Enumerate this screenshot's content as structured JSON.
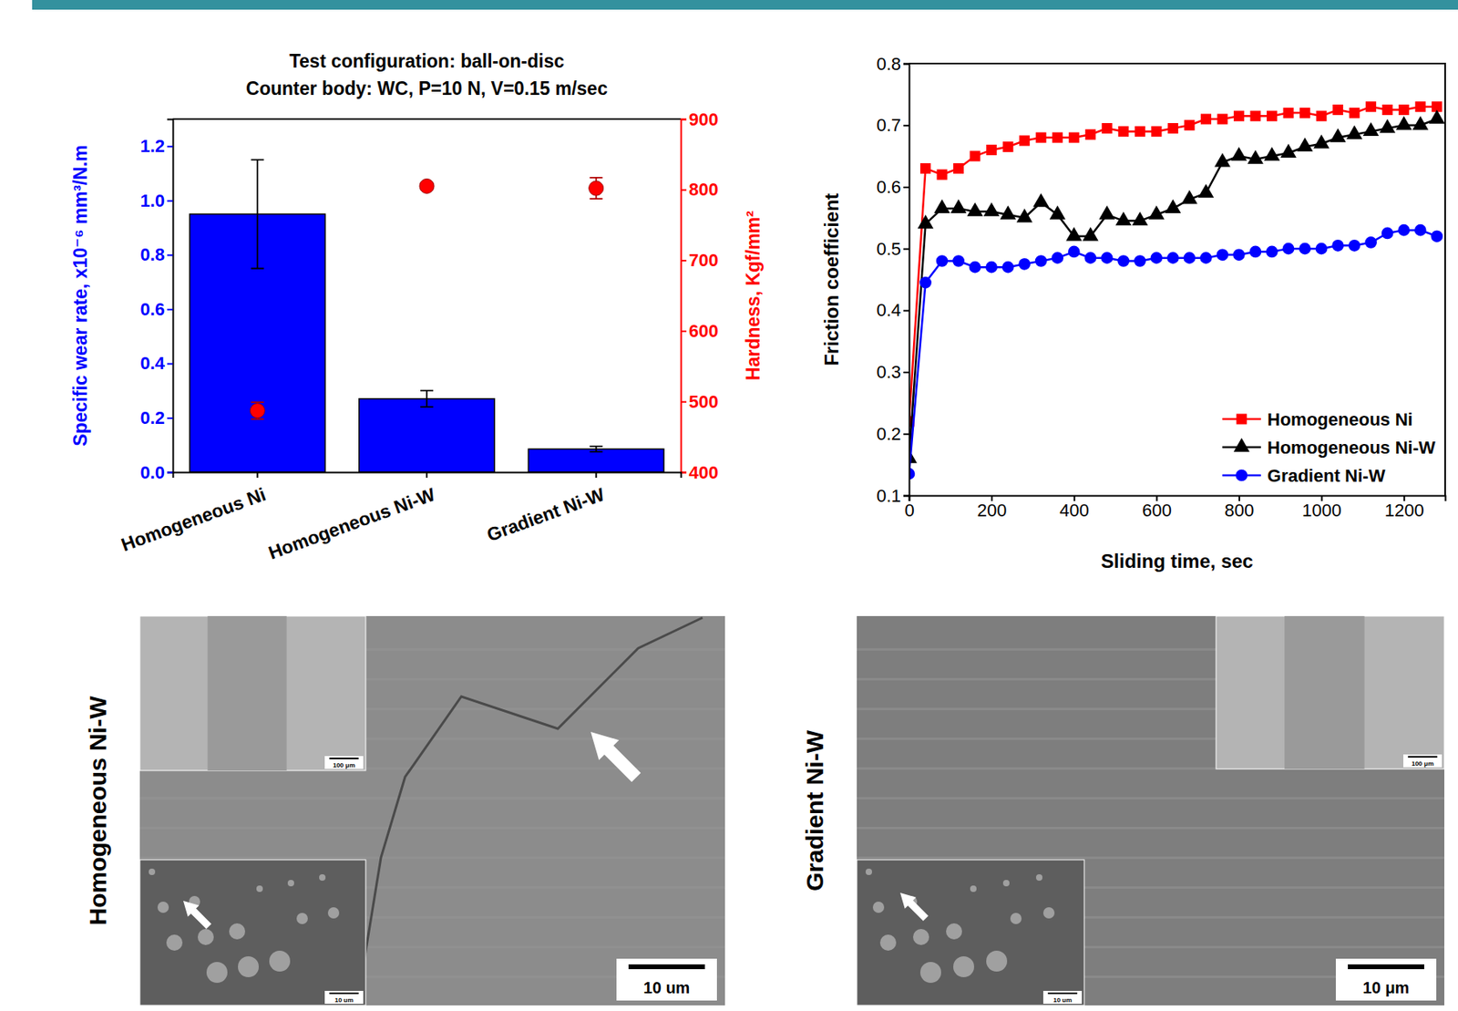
{
  "chart_data": [
    {
      "type": "bar",
      "title": "Test configuration: ball-on-disc",
      "subtitle": "Counter body: WC, P=10 N, V=0.15 m/sec",
      "categories": [
        "Homogeneous Ni",
        "Homogeneous Ni-W",
        "Gradient Ni-W"
      ],
      "series": [
        {
          "type": "bar",
          "color": "#0000ff",
          "values": [
            0.95,
            0.27,
            0.085
          ],
          "errors": [
            0.2,
            0.03,
            0.01
          ]
        },
        {
          "type": "scatter",
          "axis": "y2",
          "color": "#ff0000",
          "marker": "circle",
          "values": [
            487,
            805,
            802
          ],
          "errors": [
            12,
            5,
            15
          ]
        }
      ],
      "y_label": "Specific wear rate, x10⁻⁶ mm³/N.m",
      "y2_label": "Hardness, Kgf/mm²",
      "ylim": [
        0,
        1.3
      ],
      "yticks": [
        {
          "value": 0,
          "label": "0.0"
        },
        {
          "value": 0.2,
          "label": "0.2"
        },
        {
          "value": 0.4,
          "label": "0.4"
        },
        {
          "value": 0.6,
          "label": "0.6"
        },
        {
          "value": 0.8,
          "label": "0.8"
        },
        {
          "value": 1.0,
          "label": "1.0"
        },
        {
          "value": 1.2,
          "label": "1.2"
        }
      ],
      "y2lim": [
        400,
        900
      ],
      "y2ticks": [
        400,
        500,
        600,
        700,
        800,
        900
      ]
    },
    {
      "type": "line",
      "x_label": "Sliding time, sec",
      "y_label": "Friction coefficient",
      "x": [
        0,
        40,
        80,
        120,
        160,
        200,
        240,
        280,
        320,
        360,
        400,
        440,
        480,
        520,
        560,
        600,
        640,
        680,
        720,
        760,
        800,
        840,
        880,
        920,
        960,
        1000,
        1040,
        1080,
        1120,
        1160,
        1200,
        1240,
        1280
      ],
      "series": [
        {
          "name": "Homogeneous Ni",
          "color": "#ff0000",
          "marker": "square",
          "values": [
            0.22,
            0.63,
            0.62,
            0.63,
            0.65,
            0.66,
            0.665,
            0.675,
            0.68,
            0.68,
            0.68,
            0.685,
            0.695,
            0.69,
            0.69,
            0.69,
            0.695,
            0.7,
            0.71,
            0.71,
            0.715,
            0.715,
            0.715,
            0.72,
            0.72,
            0.715,
            0.725,
            0.72,
            0.73,
            0.725,
            0.725,
            0.73,
            0.73
          ]
        },
        {
          "name": "Homogeneous Ni-W",
          "color": "#000000",
          "marker": "triangle",
          "values": [
            0.16,
            0.54,
            0.565,
            0.565,
            0.56,
            0.56,
            0.555,
            0.55,
            0.575,
            0.555,
            0.52,
            0.52,
            0.555,
            0.545,
            0.545,
            0.555,
            0.565,
            0.58,
            0.59,
            0.64,
            0.65,
            0.645,
            0.65,
            0.655,
            0.665,
            0.67,
            0.68,
            0.685,
            0.69,
            0.695,
            0.7,
            0.7,
            0.71
          ]
        },
        {
          "name": "Gradient Ni-W",
          "color": "#0000ff",
          "marker": "circle",
          "values": [
            0.135,
            0.445,
            0.48,
            0.48,
            0.47,
            0.47,
            0.47,
            0.475,
            0.48,
            0.485,
            0.495,
            0.485,
            0.485,
            0.48,
            0.48,
            0.485,
            0.485,
            0.485,
            0.485,
            0.49,
            0.49,
            0.495,
            0.495,
            0.5,
            0.5,
            0.5,
            0.505,
            0.505,
            0.51,
            0.525,
            0.53,
            0.53,
            0.52
          ]
        }
      ],
      "xlim": [
        0,
        1300
      ],
      "xticks": [
        0,
        200,
        400,
        600,
        800,
        1000,
        1200
      ],
      "ylim": [
        0.1,
        0.8
      ],
      "yticks": [
        0.1,
        0.2,
        0.3,
        0.4,
        0.5,
        0.6,
        0.7,
        0.8
      ],
      "legend": "lower right"
    }
  ],
  "images": [
    {
      "label": "Homogeneous Ni-W",
      "scale_bar": "10 um",
      "insets": [
        {
          "scale_bar": "100 μm"
        },
        {
          "scale_bar": "10 um"
        }
      ]
    },
    {
      "label": "Gradient Ni-W",
      "scale_bar": "10 μm",
      "insets": [
        {
          "scale_bar": "100 μm"
        },
        {
          "scale_bar": "10 um"
        }
      ]
    }
  ]
}
